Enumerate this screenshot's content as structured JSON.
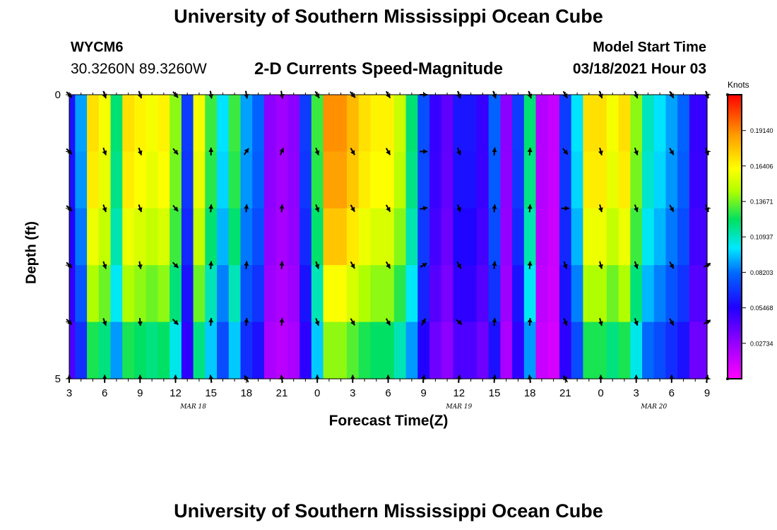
{
  "title": "University of Southern Mississippi Ocean Cube",
  "title_bottom": "University of Southern Mississippi Ocean Cube",
  "station": "WYCM6",
  "coordinates": "30.3260N 89.3260W",
  "subtitle": "2-D Currents Speed-Magnitude",
  "model_start_label": "Model Start Time",
  "model_start_value": "03/18/2021 Hour 03",
  "chart_data": {
    "type": "heatmap",
    "xlabel": "Forecast Time(Z)",
    "ylabel": "Depth (ft)",
    "units_label": "Knots",
    "x_tick_labels": [
      "3",
      "6",
      "9",
      "12",
      "15",
      "18",
      "21",
      "0",
      "3",
      "6",
      "9",
      "12",
      "15",
      "18",
      "21",
      "0",
      "3",
      "6",
      "9"
    ],
    "date_labels": [
      {
        "text": "MAR 18",
        "tick_index": 3.5
      },
      {
        "text": "MAR 19",
        "tick_index": 11
      },
      {
        "text": "MAR 20",
        "tick_index": 16.5
      }
    ],
    "y_tick_labels": [
      "0",
      "5"
    ],
    "y_range": [
      0,
      5
    ],
    "hours": [
      3,
      4,
      5,
      6,
      7,
      8,
      9,
      10,
      11,
      12,
      13,
      14,
      15,
      16,
      17,
      18,
      19,
      20,
      21,
      22,
      23,
      0,
      1,
      2,
      3,
      4,
      5,
      6,
      7,
      8,
      9,
      10,
      11,
      12,
      13,
      14,
      15,
      16,
      17,
      18,
      19,
      20,
      21,
      22,
      23,
      0,
      1,
      2,
      3,
      4,
      5,
      6,
      7,
      8,
      9
    ],
    "depth_levels": 5,
    "colorbar_ticks": [
      0.02734,
      0.05468,
      0.08203,
      0.10937,
      0.13671,
      0.16406,
      0.1914
    ],
    "colorbar_tick_text": [
      "0.02734",
      "0.05468",
      "0.08203",
      "0.10937",
      "0.13671",
      "0.16406",
      "0.19140"
    ],
    "color_range": [
      0.0,
      0.219
    ],
    "speed_profile_surface": [
      0.06,
      0.09,
      0.17,
      0.16,
      0.12,
      0.17,
      0.165,
      0.16,
      0.165,
      0.14,
      0.07,
      0.16,
      0.13,
      0.1,
      0.13,
      0.09,
      0.08,
      0.03,
      0.025,
      0.03,
      0.07,
      0.13,
      0.19,
      0.19,
      0.18,
      0.17,
      0.165,
      0.165,
      0.15,
      0.12,
      0.075,
      0.05,
      0.04,
      0.06,
      0.06,
      0.05,
      0.08,
      0.03,
      0.07,
      0.12,
      0.02,
      0.015,
      0.07,
      0.1,
      0.17,
      0.17,
      0.16,
      0.17,
      0.14,
      0.11,
      0.1,
      0.09,
      0.08,
      0.05,
      0.05
    ],
    "depth_factor": [
      1.0,
      0.98,
      0.93,
      0.85,
      0.74
    ],
    "arrows": [
      {
        "hour_index": 0,
        "angles_deg": [
          135,
          135,
          135,
          135,
          135,
          0
        ]
      },
      {
        "hour_index": 3,
        "angles_deg": [
          160,
          160,
          160,
          160,
          160,
          0
        ]
      },
      {
        "hour_index": 6,
        "angles_deg": [
          160,
          160,
          160,
          170,
          175,
          0
        ]
      },
      {
        "hour_index": 9,
        "angles_deg": [
          140,
          140,
          140,
          135,
          135,
          0
        ]
      },
      {
        "hour_index": 12,
        "angles_deg": [
          170,
          0,
          5,
          5,
          5,
          350
        ]
      },
      {
        "hour_index": 15,
        "angles_deg": [
          170,
          35,
          5,
          5,
          5,
          330
        ]
      },
      {
        "hour_index": 18,
        "angles_deg": [
          170,
          25,
          5,
          5,
          5,
          350
        ]
      },
      {
        "hour_index": 21,
        "angles_deg": [
          150,
          160,
          160,
          160,
          160,
          0
        ]
      },
      {
        "hour_index": 24,
        "angles_deg": [
          140,
          150,
          150,
          150,
          150,
          0
        ]
      },
      {
        "hour_index": 27,
        "angles_deg": [
          150,
          150,
          150,
          150,
          150,
          0
        ]
      },
      {
        "hour_index": 30,
        "angles_deg": [
          90,
          90,
          80,
          60,
          30,
          10
        ]
      },
      {
        "hour_index": 33,
        "angles_deg": [
          160,
          160,
          160,
          150,
          130,
          10
        ]
      },
      {
        "hour_index": 36,
        "angles_deg": [
          160,
          5,
          5,
          5,
          5,
          5
        ]
      },
      {
        "hour_index": 39,
        "angles_deg": [
          160,
          5,
          5,
          5,
          5,
          350
        ]
      },
      {
        "hour_index": 42,
        "angles_deg": [
          150,
          140,
          90,
          160,
          160,
          330
        ]
      },
      {
        "hour_index": 45,
        "angles_deg": [
          160,
          165,
          165,
          165,
          165,
          0
        ]
      },
      {
        "hour_index": 48,
        "angles_deg": [
          160,
          160,
          160,
          160,
          160,
          0
        ]
      },
      {
        "hour_index": 51,
        "angles_deg": [
          150,
          150,
          150,
          150,
          150,
          0
        ]
      },
      {
        "hour_index": 54,
        "angles_deg": [
          160,
          160,
          160,
          60,
          60,
          10
        ]
      }
    ]
  }
}
